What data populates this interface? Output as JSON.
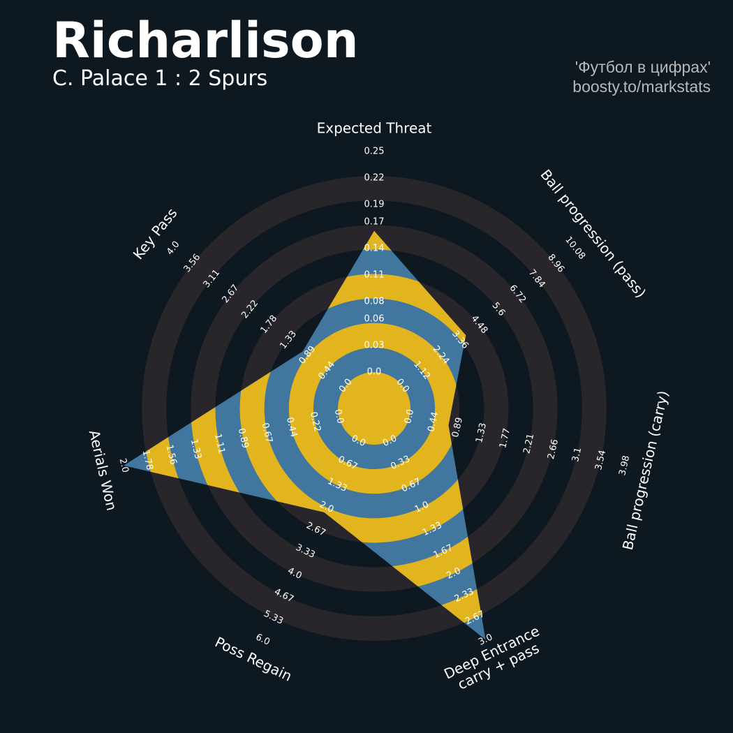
{
  "chart_data": {
    "type": "radar",
    "title": "Richarlison",
    "subtitle": "C. Palace 1 : 2 Spurs",
    "credits": [
      "'Футбол в цифрах'",
      "boosty.to/markstats"
    ],
    "axes": [
      {
        "name": "Expected Threat",
        "lim": [
          0,
          0.25
        ],
        "ticks": [
          {
            "value": 0,
            "label": "0.0"
          },
          0.03,
          0.06,
          0.08,
          0.11,
          0.14,
          0.17,
          0.19,
          0.22,
          0.25
        ]
      },
      {
        "name": "Ball progression (pass)",
        "lim": [
          0,
          10.08
        ],
        "ticks": [
          {
            "value": 0,
            "label": "0.0"
          },
          1.12,
          2.24,
          3.36,
          4.48,
          5.6,
          6.72,
          7.84,
          8.96,
          10.08
        ]
      },
      {
        "name": "Ball progression (carry)",
        "lim": [
          0,
          3.98
        ],
        "ticks": [
          {
            "value": 0,
            "label": "0.0"
          },
          0.44,
          0.89,
          1.33,
          1.77,
          2.21,
          2.66,
          3.1,
          3.54,
          3.98
        ]
      },
      {
        "name": "Deep Entrance\ncarry + pass",
        "lim": [
          0,
          3
        ],
        "ticks": [
          {
            "value": 0,
            "label": "0.0"
          },
          0.33,
          0.67,
          {
            "value": 1,
            "label": "1.0"
          },
          1.33,
          1.67,
          {
            "value": 2,
            "label": "2.0"
          },
          2.33,
          2.67,
          {
            "value": 3,
            "label": "3.0"
          }
        ]
      },
      {
        "name": "Poss Regain",
        "lim": [
          0,
          6
        ],
        "ticks": [
          {
            "value": 0,
            "label": "0.0"
          },
          0.67,
          1.33,
          {
            "value": 2,
            "label": "2.0"
          },
          2.67,
          3.33,
          {
            "value": 4,
            "label": "4.0"
          },
          4.67,
          5.33,
          {
            "value": 6,
            "label": "6.0"
          }
        ]
      },
      {
        "name": "Aerials Won",
        "lim": [
          0,
          2
        ],
        "ticks": [
          {
            "value": 0,
            "label": "0.0"
          },
          0.22,
          0.44,
          0.67,
          0.89,
          1.11,
          1.33,
          1.56,
          1.78,
          {
            "value": 2,
            "label": "2.0"
          }
        ]
      },
      {
        "name": "Key Pass",
        "lim": [
          0,
          4
        ],
        "ticks": [
          {
            "value": 0,
            "label": "0.0"
          },
          0.44,
          0.89,
          1.33,
          1.78,
          2.22,
          2.67,
          3.11,
          3.56,
          {
            "value": 4,
            "label": "4.0"
          }
        ]
      }
    ],
    "values": [
      0.16,
      3.7,
      0.72,
      3,
      2.15,
      2,
      1
    ],
    "colors": {
      "background_rings": "#28252b",
      "polygon": "#41779f",
      "polygon_rings": "#e2b41d"
    }
  }
}
